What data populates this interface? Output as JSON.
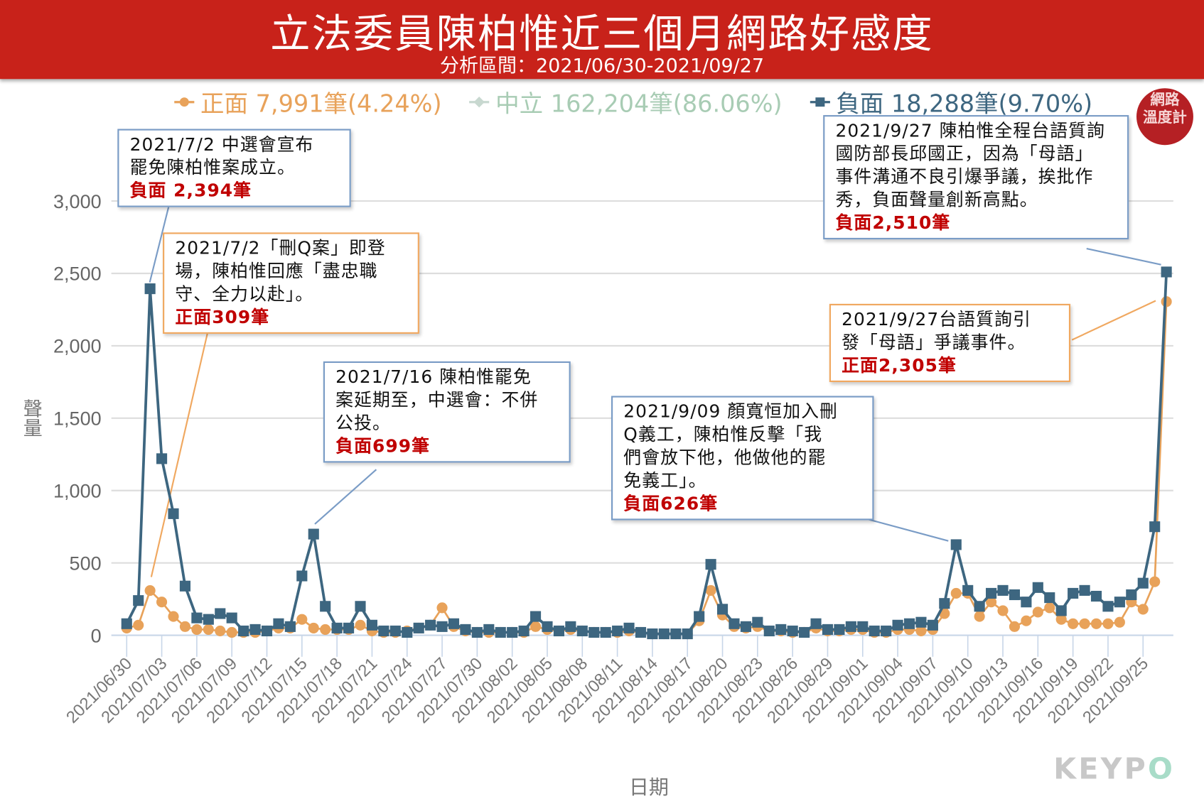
{
  "header": {
    "title": "立法委員陳柏惟近三個月網路好感度",
    "subtitle": "分析區間：2021/06/30-2021/09/27"
  },
  "logo": {
    "text": "網路溫度計"
  },
  "watermark": {
    "text_a": "KEYP",
    "text_b": "O"
  },
  "colors": {
    "positive": "#e8a25a",
    "neutral": "#a8ccb4",
    "negative": "#3d6680",
    "header": "#c8221a",
    "highlight": "#c00000"
  },
  "annotations": [
    {
      "text": "2021/7/2 中選會宣布\n罷免陳柏惟案成立。",
      "highlight": "負面 2,394筆",
      "style": "blue"
    },
    {
      "text": "2021/7/2「刪Q案」即登\n場，陳柏惟回應「盡忠職\n守、全力以赴」。",
      "highlight": "正面309筆",
      "style": "orange"
    },
    {
      "text": "2021/7/16 陳柏惟罷免\n案延期至，中選會：不併\n公投。",
      "highlight": "負面699筆",
      "style": "blue"
    },
    {
      "text": "2021/9/09 顏寬恒加入刪\nQ義工，陳柏惟反擊「我\n們會放下他，他做他的罷\n免義工」。",
      "highlight": "負面626筆",
      "style": "blue"
    },
    {
      "text": "2021/9/27 陳柏惟全程台語質詢\n國防部長邱國正，因為「母語」\n事件溝通不良引爆爭議，挨批作\n秀，負面聲量創新高點。",
      "highlight": "負面2,510筆",
      "style": "blue"
    },
    {
      "text": "2021/9/27台語質詢引\n發「母語」爭議事件。",
      "highlight": "正面2,305筆",
      "style": "orange"
    }
  ],
  "chart_data": {
    "type": "line",
    "title": "立法委員陳柏惟近三個月網路好感度",
    "xlabel": "日期",
    "ylabel": "聲量",
    "ylim": [
      0,
      3000
    ],
    "yticks": [
      0,
      500,
      1000,
      1500,
      2000,
      2500,
      3000
    ],
    "ytick_labels": [
      "0",
      "500",
      "1,000",
      "1,500",
      "2,000",
      "2,500",
      "3,000"
    ],
    "start_date": "2021/06/30",
    "xtick_labels": [
      "2021/06/30",
      "2021/07/03",
      "2021/07/06",
      "2021/07/09",
      "2021/07/12",
      "2021/07/15",
      "2021/07/18",
      "2021/07/21",
      "2021/07/24",
      "2021/07/27",
      "2021/07/30",
      "2021/08/02",
      "2021/08/05",
      "2021/08/08",
      "2021/08/11",
      "2021/08/14",
      "2021/08/17",
      "2021/08/20",
      "2021/08/23",
      "2021/08/26",
      "2021/08/29",
      "2021/09/01",
      "2021/09/04",
      "2021/09/07",
      "2021/09/10",
      "2021/09/13",
      "2021/09/16",
      "2021/09/19",
      "2021/09/22",
      "2021/09/25"
    ],
    "legend_position": "top",
    "legend": [
      {
        "name": "正面 7,991筆(4.24%)",
        "key": "positive"
      },
      {
        "name": "中立 162,204筆(86.06%)",
        "key": "neutral"
      },
      {
        "name": "負面 18,288筆(9.70%)",
        "key": "negative"
      }
    ],
    "series": [
      {
        "name": "正面",
        "key": "positive",
        "marker": "circle",
        "values": [
          50,
          70,
          309,
          230,
          130,
          60,
          40,
          40,
          30,
          20,
          20,
          20,
          30,
          50,
          50,
          110,
          50,
          40,
          40,
          40,
          70,
          30,
          20,
          20,
          30,
          50,
          70,
          190,
          60,
          30,
          20,
          20,
          20,
          20,
          20,
          60,
          40,
          30,
          40,
          30,
          20,
          20,
          20,
          30,
          20,
          10,
          10,
          10,
          10,
          100,
          310,
          140,
          60,
          50,
          60,
          30,
          30,
          20,
          20,
          50,
          30,
          30,
          40,
          40,
          20,
          20,
          40,
          40,
          30,
          40,
          150,
          290,
          290,
          130,
          230,
          170,
          60,
          100,
          160,
          190,
          110,
          80,
          80,
          80,
          80,
          90,
          230,
          180,
          370,
          2305
        ]
      },
      {
        "name": "負面",
        "key": "negative",
        "marker": "square",
        "values": [
          80,
          240,
          2394,
          1220,
          840,
          340,
          120,
          110,
          150,
          120,
          30,
          40,
          30,
          80,
          60,
          410,
          699,
          200,
          50,
          50,
          200,
          70,
          30,
          30,
          20,
          50,
          70,
          60,
          80,
          40,
          20,
          40,
          20,
          20,
          30,
          130,
          60,
          30,
          60,
          30,
          20,
          20,
          30,
          50,
          20,
          10,
          10,
          10,
          10,
          130,
          490,
          180,
          80,
          60,
          90,
          30,
          40,
          30,
          20,
          80,
          40,
          40,
          60,
          60,
          30,
          30,
          70,
          80,
          90,
          70,
          220,
          626,
          310,
          200,
          290,
          310,
          280,
          230,
          330,
          260,
          170,
          290,
          310,
          270,
          200,
          230,
          280,
          360,
          750,
          2510
        ]
      }
    ]
  }
}
